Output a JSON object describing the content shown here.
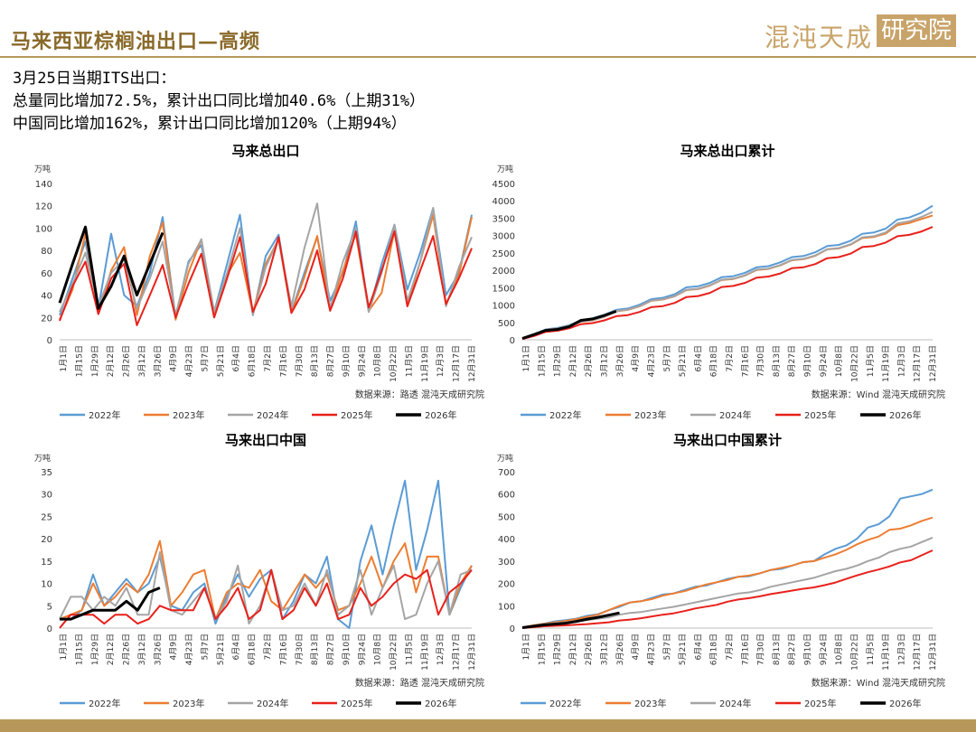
{
  "header": {
    "title": "马来西亚棕榈油出口—高频",
    "logo_text": "混沌天成",
    "logo_box_text": "研究院"
  },
  "notes": [
    "3月25日当期ITS出口：",
    "总量同比增加72.5%，累计出口同比增加40.6%（上期31%）",
    "中国同比增加162%，累计出口同比增加120%（上期94%）"
  ],
  "colors": {
    "2022年": "#5b9bd5",
    "2023年": "#ed7d31",
    "2024年": "#a5a5a5",
    "2025年": "#e8211b",
    "2026年": "#000000",
    "accent": "#b8975a"
  },
  "chart_data": [
    {
      "type": "line",
      "title": "马来总出口",
      "unit": "万吨",
      "source": "数据来源：路透  混沌天成研究院",
      "ylim": [
        0,
        140
      ],
      "yticks": [
        0,
        20,
        40,
        60,
        80,
        100,
        120,
        140
      ],
      "x_tick_labels": [
        "1月1日",
        "1月15日",
        "1月29日",
        "2月12日",
        "2月26日",
        "3月12日",
        "3月26日",
        "4月9日",
        "4月23日",
        "5月7日",
        "5月21日",
        "6月4日",
        "6月18日",
        "7月2日",
        "7月16日",
        "7月30日",
        "8月13日",
        "8月27日",
        "9月10日",
        "9月24日",
        "10月8日",
        "10月22日",
        "11月5日",
        "11月19日",
        "12月3日",
        "12月17日",
        "12月31日"
      ],
      "series": [
        {
          "name": "2022年",
          "values": [
            22,
            55,
            88,
            28,
            95,
            40,
            30,
            60,
            110,
            20,
            70,
            85,
            25,
            68,
            112,
            22,
            75,
            94,
            25,
            60,
            92,
            35,
            60,
            106,
            25,
            68,
            103,
            45,
            78,
            118,
            40,
            60,
            112
          ]
        },
        {
          "name": "2023年",
          "values": [
            18,
            45,
            95,
            24,
            62,
            83,
            22,
            75,
            105,
            18,
            60,
            90,
            22,
            58,
            78,
            24,
            68,
            90,
            24,
            56,
            93,
            27,
            62,
            95,
            26,
            42,
            98,
            30,
            70,
            112,
            32,
            58,
            110
          ]
        },
        {
          "name": "2024年",
          "values": [
            25,
            50,
            78,
            30,
            60,
            72,
            28,
            55,
            88,
            22,
            68,
            90,
            25,
            60,
            100,
            22,
            65,
            90,
            30,
            82,
            122,
            28,
            70,
            100,
            25,
            60,
            103,
            35,
            70,
            118,
            30,
            65,
            92
          ]
        },
        {
          "name": "2025年",
          "values": [
            17,
            48,
            70,
            23,
            55,
            68,
            13,
            40,
            67,
            20,
            50,
            77,
            20,
            55,
            92,
            25,
            50,
            92,
            24,
            45,
            80,
            26,
            55,
            97,
            29,
            62,
            97,
            30,
            62,
            93,
            32,
            55,
            82
          ]
        },
        {
          "name": "2026年",
          "values": [
            33,
            68,
            101,
            28,
            48,
            75,
            40,
            68,
            96
          ]
        }
      ]
    },
    {
      "type": "line",
      "title": "马来总出口累计",
      "unit": "万吨",
      "source": "数据来源：Wind  混沌天成研究院",
      "ylim": [
        0,
        4500
      ],
      "yticks": [
        0,
        500,
        1000,
        1500,
        2000,
        2500,
        3000,
        3500,
        4000,
        4500
      ],
      "x_tick_labels": [
        "1月1日",
        "1月15日",
        "1月29日",
        "2月12日",
        "2月26日",
        "3月12日",
        "3月26日",
        "4月9日",
        "4月23日",
        "5月7日",
        "5月21日",
        "6月4日",
        "6月18日",
        "7月2日",
        "7月16日",
        "7月30日",
        "8月13日",
        "8月27日",
        "9月10日",
        "9月24日",
        "10月8日",
        "10月22日",
        "11月5日",
        "11月19日",
        "12月3日",
        "12月17日",
        "12月31日"
      ],
      "series": [
        {
          "name": "2022年",
          "values": [
            40,
            160,
            300,
            340,
            420,
            560,
            620,
            720,
            860,
            900,
            1010,
            1170,
            1210,
            1310,
            1510,
            1540,
            1640,
            1800,
            1830,
            1930,
            2090,
            2120,
            2230,
            2380,
            2410,
            2520,
            2700,
            2730,
            2850,
            3050,
            3090,
            3200,
            3460,
            3520,
            3650,
            3860
          ]
        },
        {
          "name": "2023年",
          "values": [
            30,
            140,
            280,
            320,
            400,
            520,
            560,
            660,
            820,
            860,
            960,
            1120,
            1160,
            1250,
            1430,
            1460,
            1560,
            1720,
            1750,
            1850,
            2010,
            2040,
            2140,
            2290,
            2320,
            2420,
            2600,
            2630,
            2740,
            2930,
            2960,
            3060,
            3300,
            3360,
            3470,
            3580
          ]
        },
        {
          "name": "2024年",
          "values": [
            35,
            145,
            285,
            325,
            405,
            525,
            565,
            665,
            830,
            870,
            970,
            1130,
            1170,
            1260,
            1440,
            1470,
            1570,
            1730,
            1760,
            1860,
            2020,
            2050,
            2150,
            2300,
            2330,
            2430,
            2610,
            2640,
            2750,
            2950,
            2980,
            3090,
            3350,
            3410,
            3530,
            3680
          ]
        },
        {
          "name": "2025年",
          "values": [
            20,
            110,
            230,
            260,
            330,
            450,
            480,
            560,
            680,
            710,
            800,
            940,
            970,
            1060,
            1230,
            1260,
            1350,
            1520,
            1550,
            1640,
            1790,
            1820,
            1910,
            2060,
            2090,
            2180,
            2350,
            2380,
            2480,
            2670,
            2700,
            2800,
            2980,
            3020,
            3110,
            3250
          ]
        },
        {
          "name": "2026年",
          "values": [
            40,
            150,
            270,
            300,
            380,
            560,
            600,
            700,
            820
          ]
        }
      ]
    },
    {
      "type": "line",
      "title": "马来出口中国",
      "unit": "万吨",
      "source": "数据来源：路透  混沌天成研究院",
      "ylim": [
        0,
        35
      ],
      "yticks": [
        0,
        5,
        10,
        15,
        20,
        25,
        30,
        35
      ],
      "x_tick_labels": [
        "1月1日",
        "1月15日",
        "1月29日",
        "2月12日",
        "2月26日",
        "3月12日",
        "3月26日",
        "4月9日",
        "4月23日",
        "5月7日",
        "5月21日",
        "6月4日",
        "6月18日",
        "7月2日",
        "7月16日",
        "7月30日",
        "8月13日",
        "8月27日",
        "9月10日",
        "9月24日",
        "10月8日",
        "10月22日",
        "11月5日",
        "11月19日",
        "12月3日",
        "12月17日",
        "12月31日"
      ],
      "series": [
        {
          "name": "2022年",
          "values": [
            2,
            2,
            4,
            12,
            5,
            8,
            11,
            8,
            10,
            16,
            5,
            4,
            8,
            10,
            1,
            7,
            12,
            7,
            11,
            13,
            2,
            6,
            12,
            10,
            16,
            2,
            0,
            15,
            23,
            12,
            23,
            33,
            13,
            22,
            33,
            3,
            9,
            14
          ]
        },
        {
          "name": "2023年",
          "values": [
            2,
            3,
            4,
            10,
            5,
            7,
            10,
            8,
            12,
            19.5,
            5,
            8,
            12,
            13,
            2,
            8,
            10,
            9,
            13,
            6,
            4,
            8,
            12,
            9,
            12,
            4,
            5,
            10,
            16,
            9,
            15,
            19,
            8,
            16,
            16,
            3,
            10,
            14
          ]
        },
        {
          "name": "2024年",
          "values": [
            2,
            7,
            7,
            4,
            7,
            5,
            9,
            3,
            3,
            17,
            4,
            3,
            6,
            9,
            2,
            6,
            14,
            1,
            5,
            13,
            4,
            5,
            10,
            5,
            13,
            3,
            5,
            13,
            3,
            9,
            14,
            2,
            3,
            10,
            15,
            3,
            12,
            13
          ]
        },
        {
          "name": "2025年",
          "values": [
            0,
            3,
            3,
            3,
            1,
            3,
            3,
            1,
            2,
            5,
            4,
            4,
            4,
            9,
            2,
            5,
            9,
            2,
            4,
            13,
            2,
            4,
            9,
            5,
            10,
            2,
            3,
            9,
            5,
            7,
            10,
            12,
            11,
            13,
            3,
            8,
            10,
            13
          ]
        },
        {
          "name": "2026年",
          "values": [
            2,
            2,
            3,
            4,
            4,
            4,
            6,
            4,
            8,
            9
          ]
        }
      ]
    },
    {
      "type": "line",
      "title": "马来出口中国累计",
      "unit": "万吨",
      "source": "数据来源：Wind  混沌天成研究院",
      "ylim": [
        0,
        700
      ],
      "yticks": [
        0,
        100,
        200,
        300,
        400,
        500,
        600,
        700
      ],
      "x_tick_labels": [
        "1月1日",
        "1月15日",
        "1月29日",
        "2月12日",
        "2月26日",
        "3月12日",
        "3月26日",
        "4月9日",
        "4月23日",
        "5月7日",
        "5月21日",
        "6月4日",
        "6月18日",
        "7月2日",
        "7月16日",
        "7月30日",
        "8月13日",
        "8月27日",
        "9月10日",
        "9月24日",
        "10月8日",
        "10月22日",
        "11月5日",
        "11月19日",
        "12月3日",
        "12月17日",
        "12月31日"
      ],
      "series": [
        {
          "name": "2022年",
          "values": [
            2,
            10,
            20,
            30,
            35,
            42,
            55,
            62,
            80,
            95,
            115,
            120,
            135,
            150,
            155,
            170,
            185,
            190,
            205,
            220,
            230,
            232,
            245,
            260,
            265,
            280,
            295,
            300,
            330,
            355,
            370,
            400,
            450,
            465,
            500,
            580,
            590,
            600,
            620
          ]
        },
        {
          "name": "2023年",
          "values": [
            2,
            12,
            20,
            26,
            32,
            40,
            50,
            60,
            80,
            100,
            115,
            120,
            130,
            145,
            155,
            165,
            180,
            195,
            205,
            215,
            230,
            235,
            245,
            260,
            270,
            280,
            295,
            300,
            315,
            330,
            350,
            375,
            395,
            410,
            440,
            445,
            460,
            480,
            495
          ]
        },
        {
          "name": "2024年",
          "values": [
            2,
            10,
            18,
            22,
            26,
            30,
            36,
            42,
            48,
            60,
            68,
            72,
            80,
            88,
            95,
            105,
            115,
            125,
            135,
            145,
            155,
            160,
            170,
            185,
            195,
            205,
            215,
            225,
            240,
            255,
            265,
            280,
            300,
            315,
            340,
            355,
            365,
            385,
            405
          ]
        },
        {
          "name": "2025年",
          "values": [
            0,
            4,
            8,
            10,
            12,
            15,
            18,
            22,
            26,
            34,
            38,
            44,
            52,
            60,
            66,
            76,
            88,
            96,
            104,
            118,
            128,
            134,
            142,
            152,
            160,
            168,
            176,
            182,
            192,
            204,
            220,
            236,
            250,
            262,
            276,
            294,
            304,
            326,
            348
          ]
        },
        {
          "name": "2026年",
          "values": [
            2,
            8,
            14,
            18,
            22,
            30,
            40,
            48,
            58,
            68
          ]
        }
      ]
    }
  ]
}
